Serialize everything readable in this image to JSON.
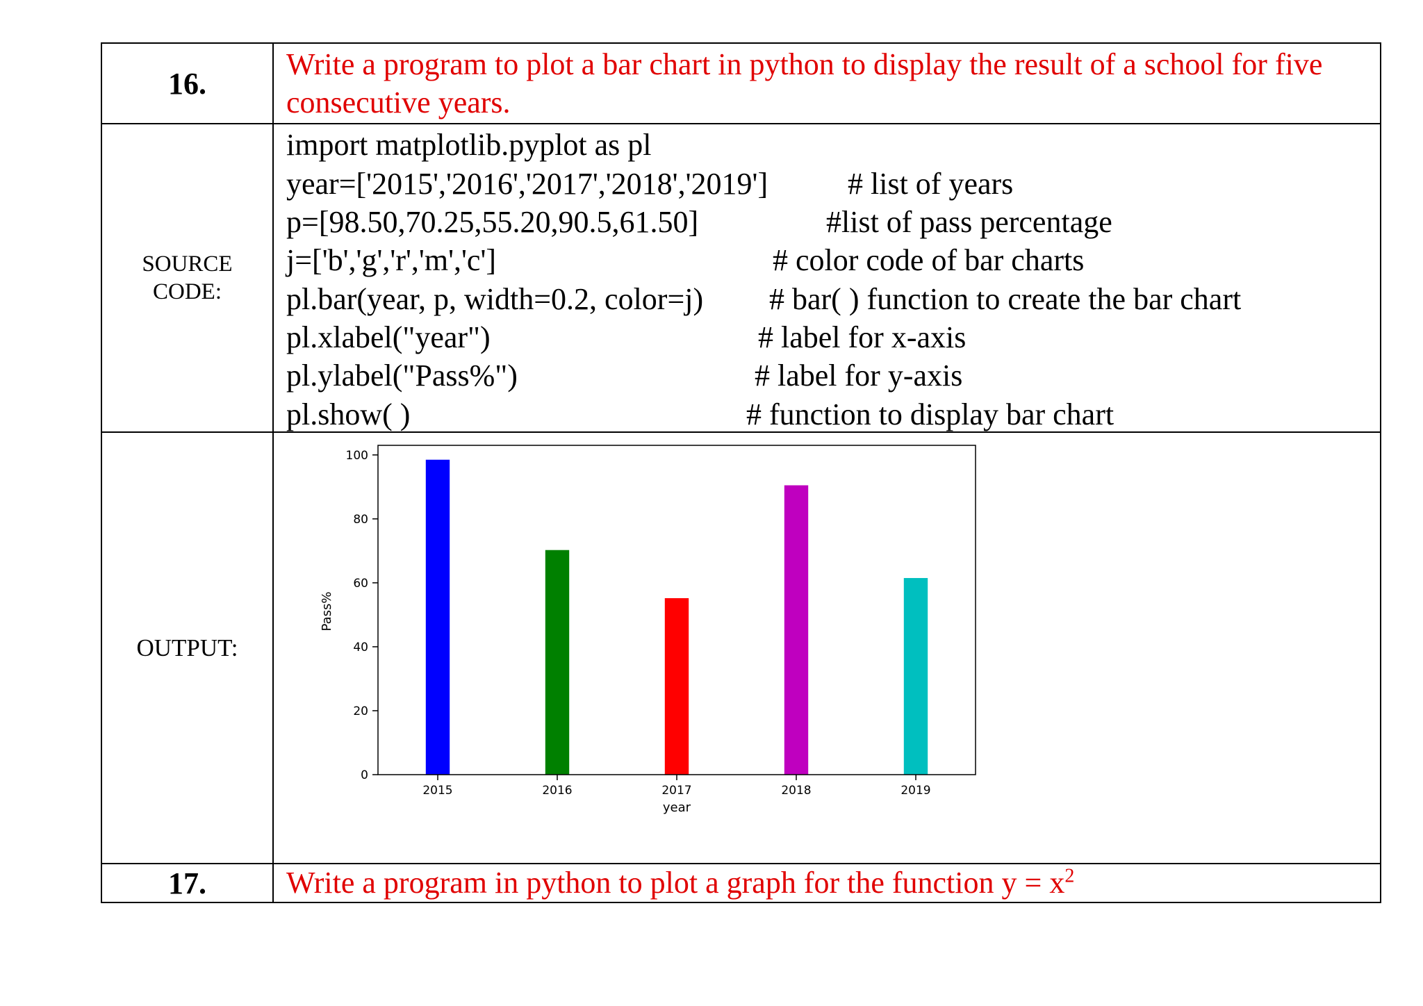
{
  "rows": [
    {
      "number": "16.",
      "question": "Write a program to plot a bar chart in python to display the result of a school for five consecutive years."
    }
  ],
  "source": {
    "label_line1": "SOURCE",
    "label_line2": "CODE:",
    "lines": [
      {
        "code": "import matplotlib.pyplot as pl",
        "comment": ""
      },
      {
        "code": "year=['2015','2016','2017','2018','2019']",
        "comment": "# list of years"
      },
      {
        "code": "p=[98.50,70.25,55.20,90.5,61.50]",
        "comment": "#list of pass percentage"
      },
      {
        "code": "j=['b','g','r','m','c']",
        "comment": "# color code of bar charts"
      },
      {
        "code": "pl.bar(year, p, width=0.2, color=j)",
        "comment": "# bar( ) function to create the bar chart"
      },
      {
        "code": "pl.xlabel(\"year\")",
        "comment": "# label for x-axis"
      },
      {
        "code": "pl.ylabel(\"Pass%\")",
        "comment": "# label for y-axis"
      },
      {
        "code": "pl.show( )",
        "comment": "# function to display bar chart"
      }
    ]
  },
  "output": {
    "label": "OUTPUT:"
  },
  "next": {
    "number": "17.",
    "question": "Write a program in python to plot a graph for the function y = x",
    "superscript": "2"
  },
  "chart_data": {
    "type": "bar",
    "categories": [
      "2015",
      "2016",
      "2017",
      "2018",
      "2019"
    ],
    "values": [
      98.5,
      70.25,
      55.2,
      90.5,
      61.5
    ],
    "colors": [
      "#0000ff",
      "#008000",
      "#ff0000",
      "#bf00bf",
      "#00bfbf"
    ],
    "xlabel": "year",
    "ylabel": "Pass%",
    "ylim": [
      0,
      103
    ],
    "yticks": [
      0,
      20,
      40,
      60,
      80,
      100
    ],
    "bar_width": 0.2,
    "grid": false
  }
}
